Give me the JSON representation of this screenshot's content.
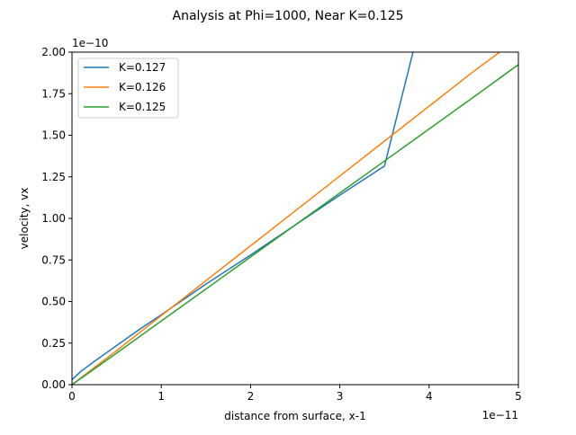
{
  "chart_data": {
    "type": "line",
    "title": "Analysis at Phi=1000, Near K=0.125",
    "xlabel": "distance from surface, x-1",
    "ylabel": "velocity, vx",
    "x_offset_text": "1e−11",
    "y_offset_text": "1e−10",
    "xlim": [
      0,
      5
    ],
    "ylim": [
      0,
      2.0
    ],
    "x_ticks": [
      0,
      1,
      2,
      3,
      4,
      5
    ],
    "x_tick_labels": [
      "0",
      "1",
      "2",
      "3",
      "4",
      "5"
    ],
    "y_ticks": [
      0,
      0.25,
      0.5,
      0.75,
      1.0,
      1.25,
      1.5,
      1.75,
      2.0
    ],
    "y_tick_labels": [
      "0.00",
      "0.25",
      "0.50",
      "0.75",
      "1.00",
      "1.25",
      "1.50",
      "1.75",
      "2.00"
    ],
    "grid": false,
    "legend_position": "upper-left",
    "series": [
      {
        "name": "K=0.127",
        "color": "#1f77b4",
        "x": [
          0,
          0.1,
          0.25,
          0.5,
          0.75,
          1.0,
          1.5,
          2.0,
          2.5,
          3.0,
          3.5,
          3.82
        ],
        "y": [
          0.03,
          0.08,
          0.14,
          0.235,
          0.33,
          0.42,
          0.605,
          0.78,
          0.96,
          1.14,
          1.315,
          2.0
        ]
      },
      {
        "name": "K=0.126",
        "color": "#ff7f0e",
        "x": [
          0,
          0.5,
          1.0,
          1.5,
          2.0,
          2.5,
          3.0,
          3.5,
          4.0,
          4.5,
          4.79
        ],
        "y": [
          0.0,
          0.205,
          0.415,
          0.625,
          0.835,
          1.045,
          1.255,
          1.465,
          1.675,
          1.885,
          2.0
        ]
      },
      {
        "name": "K=0.125",
        "color": "#2ca02c",
        "x": [
          0,
          0.5,
          1.0,
          1.5,
          2.0,
          2.5,
          3.0,
          3.5,
          4.0,
          4.5,
          5.0
        ],
        "y": [
          0.0,
          0.19,
          0.383,
          0.575,
          0.768,
          0.96,
          1.153,
          1.345,
          1.538,
          1.73,
          1.925
        ]
      }
    ]
  }
}
